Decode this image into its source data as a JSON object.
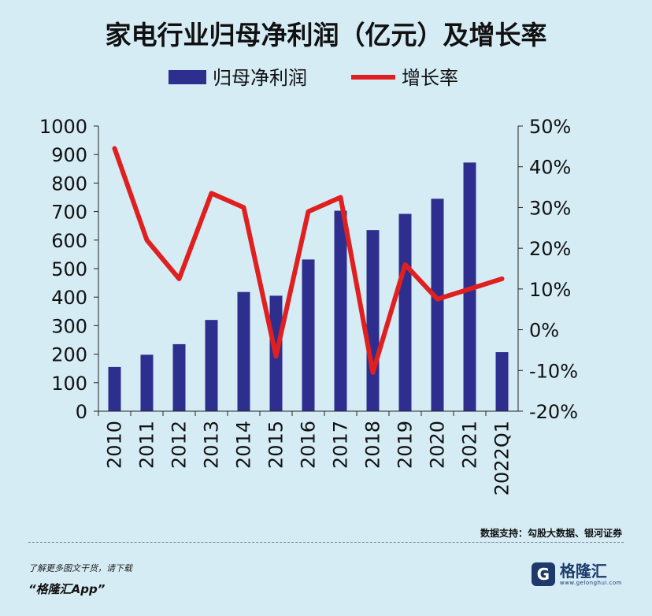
{
  "chart_data": {
    "type": "bar",
    "title": "家电行业归母净利润（亿元）及增长率",
    "categories": [
      "2010",
      "2011",
      "2012",
      "2013",
      "2014",
      "2015",
      "2016",
      "2017",
      "2018",
      "2019",
      "2020",
      "2021",
      "2022Q1"
    ],
    "series": [
      {
        "name": "归母净利润",
        "type": "bar",
        "axis": "left",
        "color": "#2e2e8f",
        "values": [
          155,
          198,
          235,
          320,
          418,
          405,
          532,
          703,
          635,
          692,
          745,
          872,
          207
        ]
      },
      {
        "name": "增长率",
        "type": "line",
        "axis": "right",
        "color": "#e02020",
        "values": [
          44.5,
          22,
          12.5,
          33.5,
          30,
          -6.5,
          29,
          32.5,
          -10.5,
          16,
          7.5,
          10,
          12.5
        ]
      }
    ],
    "y_left": {
      "min": 0,
      "max": 1000,
      "ticks": [
        0,
        100,
        200,
        300,
        400,
        500,
        600,
        700,
        800,
        900,
        1000
      ]
    },
    "y_right": {
      "min": -20,
      "max": 50,
      "ticks": [
        "-20%",
        "-10%",
        "0%",
        "10%",
        "20%",
        "30%",
        "40%",
        "50%"
      ]
    },
    "legend_position": "top"
  },
  "source_text": "数据支持：勾股大数据、银河证券",
  "footer": {
    "line1": "了解更多图文干货，请下载",
    "line2": "“格隆汇App”",
    "logo_name": "格隆汇",
    "logo_url": "www.gelonghui.com",
    "logo_letter": "G"
  }
}
